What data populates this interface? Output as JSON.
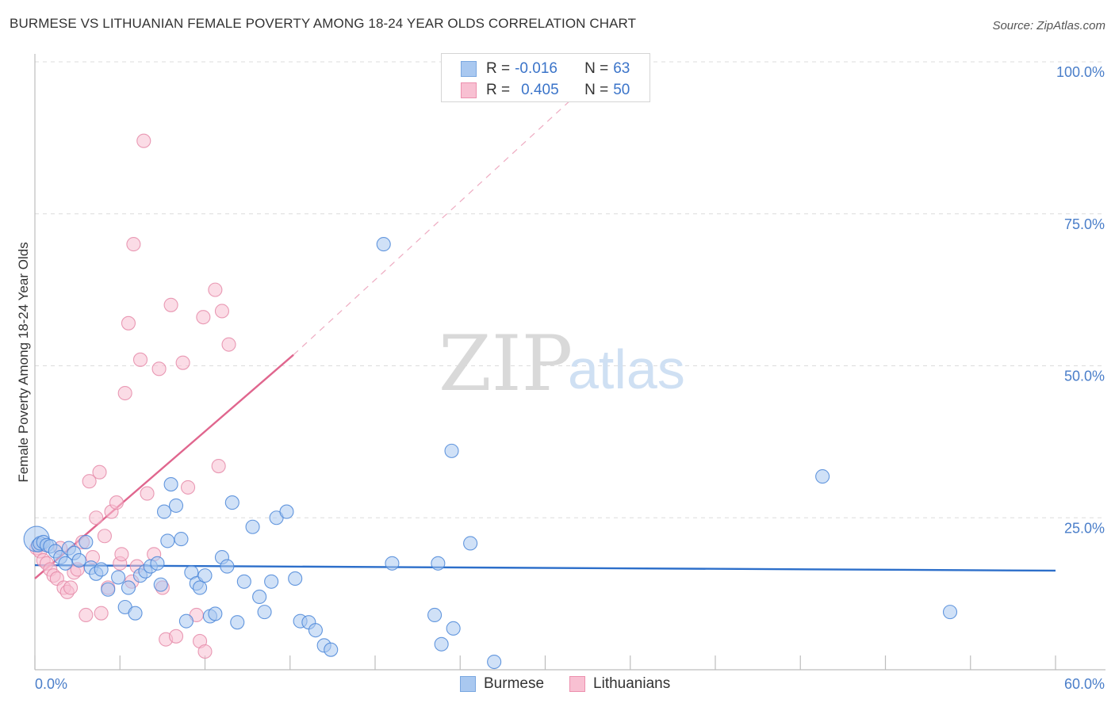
{
  "title": "BURMESE VS LITHUANIAN FEMALE POVERTY AMONG 18-24 YEAR OLDS CORRELATION CHART",
  "source": "Source: ZipAtlas.com",
  "watermark": {
    "zip": "ZIP",
    "atlas": "atlas"
  },
  "legend_top": {
    "rows": [
      {
        "r_label": "R = ",
        "r_value": "-0.016",
        "n_label": "N = ",
        "n_value": "63",
        "color": "#a9c8f0",
        "border": "#7aa7e0"
      },
      {
        "r_label": "R = ",
        "r_value": "0.405",
        "n_label": "N = ",
        "n_value": "50",
        "color": "#f8c0d2",
        "border": "#ec90ae"
      }
    ]
  },
  "legend_bottom": [
    {
      "label": "Burmese",
      "color": "#a9c8f0",
      "border": "#7aa7e0"
    },
    {
      "label": "Lithuanians",
      "color": "#f8c0d2",
      "border": "#ec90ae"
    }
  ],
  "chart_data": {
    "type": "scatter",
    "ylabel": "Female Poverty Among 18-24 Year Olds",
    "xlabel": "",
    "xlim": [
      0,
      60
    ],
    "ylim": [
      0,
      100
    ],
    "x_tick_labels": [
      "0.0%",
      "60.0%"
    ],
    "y_ticks": [
      25,
      50,
      75,
      100
    ],
    "y_tick_labels": [
      "25.0%",
      "50.0%",
      "75.0%",
      "100.0%"
    ],
    "grid": true,
    "series": [
      {
        "name": "Burmese",
        "color": "#4a86d8",
        "fill": "#a9c8f0",
        "trend": {
          "x": [
            0,
            60
          ],
          "y": [
            17.2,
            16.3
          ],
          "color": "#2d6fca"
        },
        "points": [
          [
            0.1,
            21.5
          ],
          [
            0.2,
            20.5
          ],
          [
            0.3,
            20.8
          ],
          [
            0.5,
            21.0
          ],
          [
            0.7,
            20.5
          ],
          [
            0.9,
            20.3
          ],
          [
            1.2,
            19.5
          ],
          [
            1.5,
            18.5
          ],
          [
            1.8,
            17.5
          ],
          [
            2.0,
            20.0
          ],
          [
            2.3,
            19.2
          ],
          [
            2.6,
            18.0
          ],
          [
            3.0,
            21.0
          ],
          [
            3.3,
            16.8
          ],
          [
            3.6,
            15.8
          ],
          [
            3.9,
            16.5
          ],
          [
            4.3,
            13.2
          ],
          [
            4.9,
            15.2
          ],
          [
            5.3,
            10.3
          ],
          [
            5.5,
            13.5
          ],
          [
            5.9,
            9.3
          ],
          [
            6.2,
            15.5
          ],
          [
            6.5,
            16.2
          ],
          [
            6.8,
            17.0
          ],
          [
            7.2,
            17.5
          ],
          [
            7.4,
            14.0
          ],
          [
            7.6,
            26.0
          ],
          [
            7.8,
            21.2
          ],
          [
            8.0,
            30.5
          ],
          [
            8.3,
            27.0
          ],
          [
            8.6,
            21.5
          ],
          [
            8.9,
            8.0
          ],
          [
            9.2,
            16.0
          ],
          [
            9.5,
            14.2
          ],
          [
            9.7,
            13.5
          ],
          [
            10.0,
            15.5
          ],
          [
            10.3,
            8.8
          ],
          [
            10.6,
            9.2
          ],
          [
            11.0,
            18.5
          ],
          [
            11.3,
            17.0
          ],
          [
            11.6,
            27.5
          ],
          [
            11.9,
            7.8
          ],
          [
            12.3,
            14.5
          ],
          [
            12.8,
            23.5
          ],
          [
            13.2,
            12.0
          ],
          [
            13.5,
            9.5
          ],
          [
            13.9,
            14.5
          ],
          [
            14.2,
            25.0
          ],
          [
            14.8,
            26.0
          ],
          [
            15.3,
            15.0
          ],
          [
            15.6,
            8.0
          ],
          [
            16.1,
            7.8
          ],
          [
            16.5,
            6.5
          ],
          [
            17.0,
            4.0
          ],
          [
            17.4,
            3.3
          ],
          [
            20.5,
            70.0
          ],
          [
            21.0,
            17.5
          ],
          [
            23.5,
            9.0
          ],
          [
            23.7,
            17.5
          ],
          [
            23.9,
            4.2
          ],
          [
            24.5,
            36.0
          ],
          [
            24.6,
            6.8
          ],
          [
            25.6,
            20.8
          ],
          [
            27.0,
            1.3
          ],
          [
            46.3,
            31.8
          ],
          [
            53.8,
            9.5
          ]
        ]
      },
      {
        "name": "Lithuanians",
        "color": "#e58aa8",
        "fill": "#f8c0d2",
        "trend": {
          "x": [
            0,
            15.2
          ],
          "y": [
            15.0,
            51.8
          ],
          "dash_to": [
            32.0,
            95.0
          ],
          "color": "#e0668e"
        },
        "points": [
          [
            0.1,
            20.0
          ],
          [
            0.3,
            19.5
          ],
          [
            0.5,
            18.0
          ],
          [
            0.7,
            17.5
          ],
          [
            0.9,
            16.5
          ],
          [
            1.1,
            15.5
          ],
          [
            1.3,
            15.0
          ],
          [
            1.5,
            20.0
          ],
          [
            1.7,
            13.5
          ],
          [
            1.9,
            12.8
          ],
          [
            2.1,
            13.5
          ],
          [
            2.3,
            16.0
          ],
          [
            2.5,
            16.5
          ],
          [
            2.8,
            21.0
          ],
          [
            3.0,
            9.0
          ],
          [
            3.2,
            31.0
          ],
          [
            3.4,
            18.5
          ],
          [
            3.6,
            25.0
          ],
          [
            3.8,
            32.5
          ],
          [
            3.9,
            9.3
          ],
          [
            4.1,
            22.0
          ],
          [
            4.3,
            13.5
          ],
          [
            4.5,
            26.0
          ],
          [
            4.8,
            27.5
          ],
          [
            5.0,
            17.5
          ],
          [
            5.1,
            19.0
          ],
          [
            5.3,
            45.5
          ],
          [
            5.5,
            57.0
          ],
          [
            5.7,
            14.5
          ],
          [
            5.8,
            70.0
          ],
          [
            6.0,
            17.0
          ],
          [
            6.2,
            51.0
          ],
          [
            6.4,
            87.0
          ],
          [
            6.6,
            29.0
          ],
          [
            7.0,
            19.0
          ],
          [
            7.3,
            49.5
          ],
          [
            7.5,
            13.5
          ],
          [
            7.7,
            5.0
          ],
          [
            8.0,
            60.0
          ],
          [
            8.3,
            5.5
          ],
          [
            8.7,
            50.5
          ],
          [
            9.0,
            30.0
          ],
          [
            9.5,
            9.0
          ],
          [
            9.7,
            4.7
          ],
          [
            9.9,
            58.0
          ],
          [
            10.0,
            3.0
          ],
          [
            10.6,
            62.5
          ],
          [
            10.8,
            33.5
          ],
          [
            11.0,
            59.0
          ],
          [
            11.4,
            53.5
          ]
        ]
      }
    ]
  }
}
